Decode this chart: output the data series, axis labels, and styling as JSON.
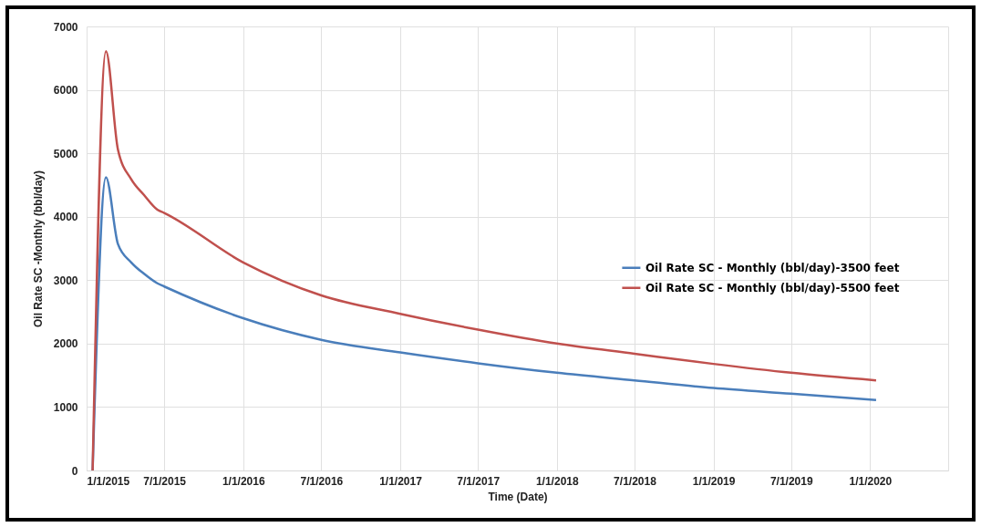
{
  "chart_data": {
    "type": "line",
    "xlabel": "Time (Date)",
    "ylabel": "Oil Rate SC -Monthly (bbl/day)",
    "x": [
      "2015-01-15",
      "2015-02-15",
      "2015-03-15",
      "2015-04-15",
      "2015-05-15",
      "2015-06-15",
      "2015-07-01",
      "2016-01-01",
      "2016-07-01",
      "2017-01-01",
      "2017-07-01",
      "2018-01-01",
      "2018-07-01",
      "2019-01-01",
      "2019-07-01",
      "2020-01-15"
    ],
    "series": [
      {
        "name": "Oil Rate SC - Monthly (bbl/day)-3500 feet",
        "color": "#4a7ebb",
        "values": [
          0,
          4620,
          3570,
          3280,
          3100,
          2950,
          2900,
          2400,
          2060,
          1860,
          1690,
          1540,
          1420,
          1300,
          1210,
          1110
        ]
      },
      {
        "name": "Oil Rate SC - Monthly (bbl/day)-5500 feet",
        "color": "#c0504d",
        "values": [
          0,
          6610,
          5060,
          4590,
          4340,
          4110,
          4060,
          3280,
          2760,
          2470,
          2220,
          2000,
          1840,
          1680,
          1540,
          1420
        ]
      }
    ],
    "xlim": [
      "2015-01-01",
      "2020-07-01"
    ],
    "xticks": [
      {
        "value": "2015-01-01",
        "label": "1/1/2015"
      },
      {
        "value": "2015-07-01",
        "label": "7/1/2015"
      },
      {
        "value": "2016-01-01",
        "label": "1/1/2016"
      },
      {
        "value": "2016-07-01",
        "label": "7/1/2016"
      },
      {
        "value": "2017-01-01",
        "label": "1/1/2017"
      },
      {
        "value": "2017-07-01",
        "label": "7/1/2017"
      },
      {
        "value": "2018-01-01",
        "label": "1/1/2018"
      },
      {
        "value": "2018-07-01",
        "label": "7/1/2018"
      },
      {
        "value": "2019-01-01",
        "label": "1/1/2019"
      },
      {
        "value": "2019-07-01",
        "label": "7/1/2019"
      },
      {
        "value": "2020-01-01",
        "label": "1/1/2020"
      },
      {
        "value": "2020-07-01",
        "label": null
      }
    ],
    "ylim": [
      0,
      7000
    ],
    "yticks": [
      0,
      1000,
      2000,
      3000,
      4000,
      5000,
      6000,
      7000
    ],
    "grid": true,
    "legend": "right",
    "marker": "none",
    "line_style": "solid"
  }
}
